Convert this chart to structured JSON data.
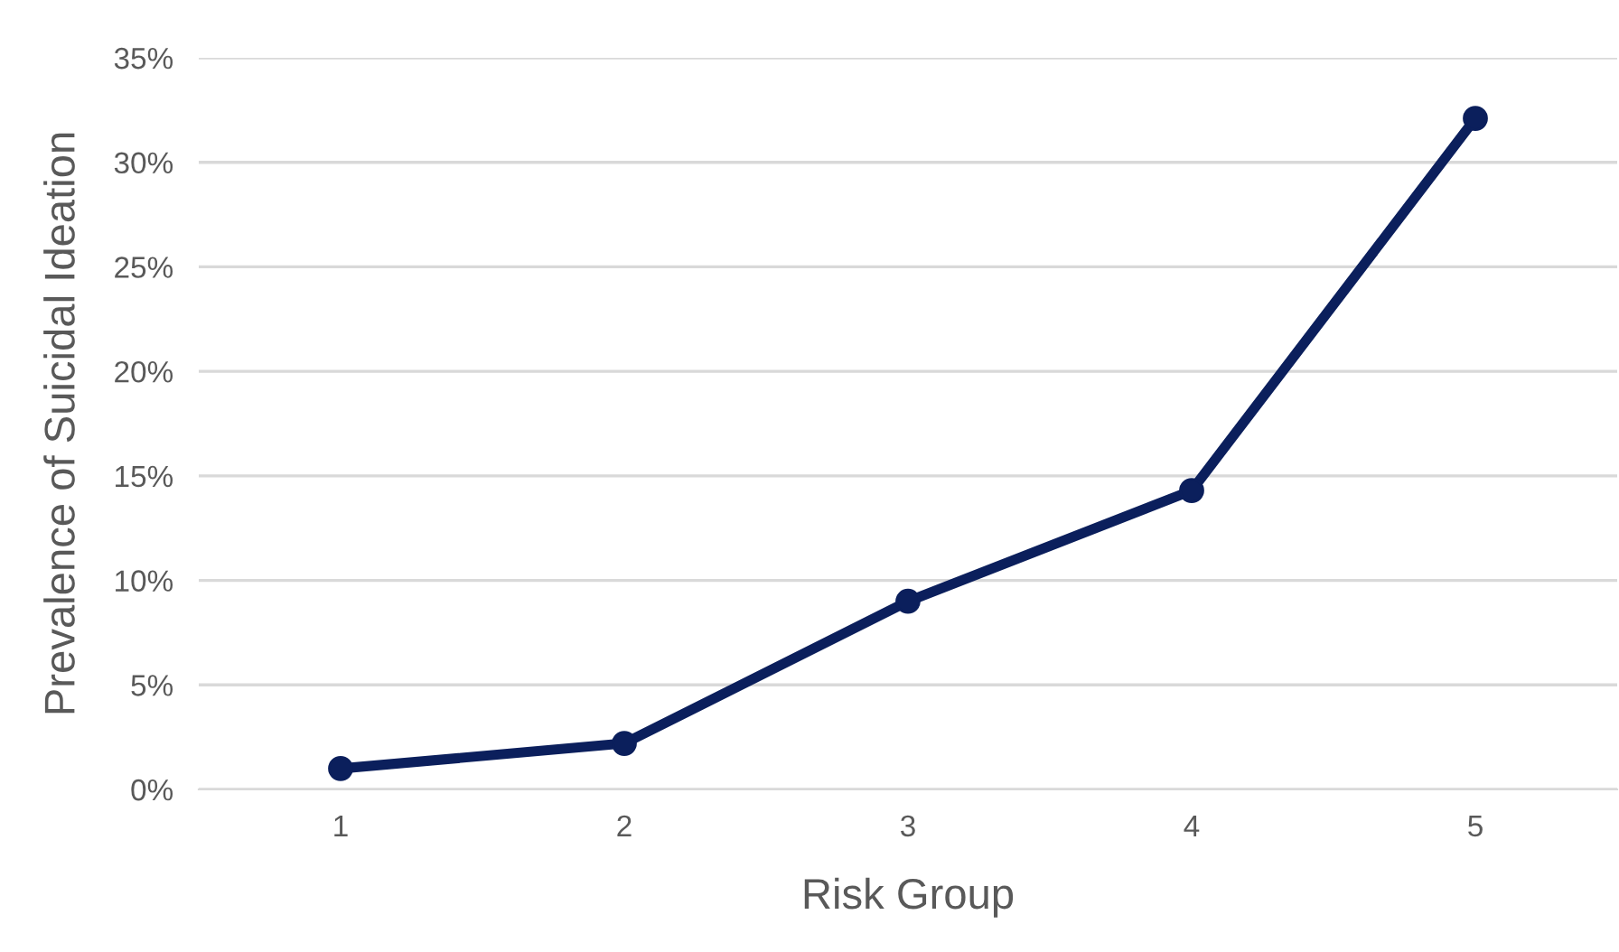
{
  "chart_data": {
    "type": "line",
    "xlabel": "Risk Group",
    "ylabel": "Prevalence of Suicidal Ideation",
    "categories": [
      "1",
      "2",
      "3",
      "4",
      "5"
    ],
    "series": [
      {
        "color": "#0b1f5c",
        "values": [
          1.0,
          2.2,
          9.0,
          14.3,
          32.1
        ]
      }
    ],
    "ylim": [
      0,
      35
    ],
    "yticks": [
      {
        "value": 0,
        "label": "0%"
      },
      {
        "value": 5,
        "label": "5%"
      },
      {
        "value": 10,
        "label": "10%"
      },
      {
        "value": 15,
        "label": "15%"
      },
      {
        "value": 20,
        "label": "20%"
      },
      {
        "value": 25,
        "label": "25%"
      },
      {
        "value": 30,
        "label": "30%"
      },
      {
        "value": 35,
        "label": "35%"
      }
    ],
    "grid": "y",
    "marker": "circle",
    "line_style": "solid",
    "legend": false
  }
}
